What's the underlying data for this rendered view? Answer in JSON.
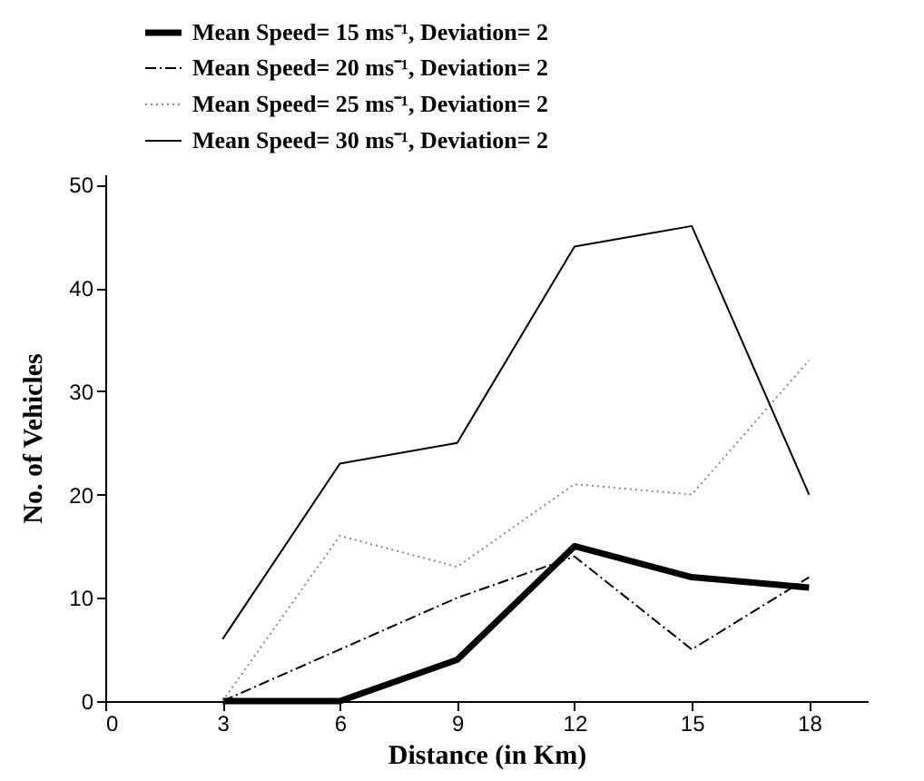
{
  "chart_data": {
    "type": "line",
    "xlabel": "Distance (in Km)",
    "ylabel": "No. of  Vehicles",
    "x": [
      3,
      6,
      9,
      12,
      15,
      18
    ],
    "series": [
      {
        "name": "Mean Speed= 15 ms⁻¹, Deviation= 2",
        "color": "#000000",
        "line_style": "solid",
        "values": [
          0,
          0,
          4,
          15,
          12,
          11
        ]
      },
      {
        "name": "Mean Speed= 20 ms⁻¹, Deviation= 2",
        "color": "#000000",
        "line_style": "dashed",
        "values": [
          0,
          5,
          10,
          14,
          5,
          12
        ]
      },
      {
        "name": "Mean Speed= 25 ms⁻¹, Deviation= 2",
        "color": "#888888",
        "line_style": "dotted",
        "values": [
          0,
          16,
          13,
          21,
          20,
          33
        ]
      },
      {
        "name": "Mean Speed= 30 ms⁻¹, Deviation= 2",
        "color": "#000000",
        "line_style": "solid",
        "values": [
          6,
          23,
          25,
          44,
          46,
          20
        ]
      }
    ],
    "xlim": [
      0,
      19.5
    ],
    "xticks": [
      0,
      3,
      6,
      9,
      12,
      15,
      18
    ],
    "ylim": [
      0,
      51
    ],
    "yticks": [
      0,
      10,
      20,
      30,
      40,
      50
    ],
    "grid": false,
    "legend": "top left",
    "marker": "none"
  }
}
